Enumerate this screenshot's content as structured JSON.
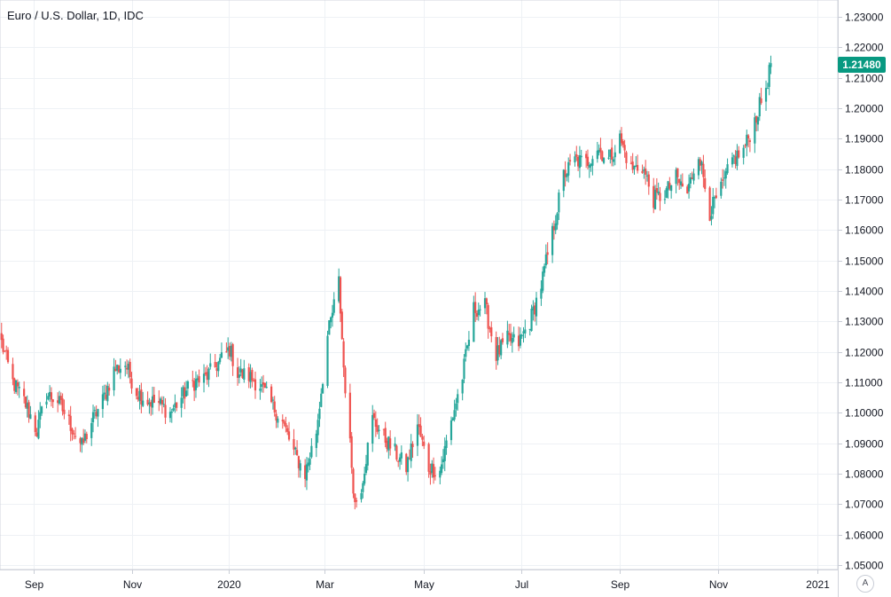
{
  "header": {
    "title": "Euro / U.S. Dollar, 1D, IDC"
  },
  "last_price": {
    "label": "1.21480",
    "color": "#089981"
  },
  "controls": {
    "auto_scale": "A"
  },
  "colors": {
    "up": "#26a69a",
    "down": "#ef5350",
    "grid": "#eef1f5",
    "axis_text": "#131722"
  },
  "chart_data": {
    "type": "candlestick",
    "title": "Euro / U.S. Dollar, 1D, IDC",
    "ylim": [
      1.05,
      1.235
    ],
    "y_ticks": [
      "1.23000",
      "1.22000",
      "1.21000",
      "1.20000",
      "1.19000",
      "1.18000",
      "1.17000",
      "1.16000",
      "1.15000",
      "1.14000",
      "1.13000",
      "1.12000",
      "1.11000",
      "1.10000",
      "1.09000",
      "1.08000",
      "1.07000",
      "1.06000",
      "1.05000"
    ],
    "x_labels": [
      "Sep",
      "Nov",
      "2020",
      "Mar",
      "May",
      "Jul",
      "Sep",
      "Nov",
      "2021"
    ],
    "grid": true,
    "series": [
      {
        "date": "2019-08-12",
        "value": 1.123
      },
      {
        "date": "2019-08-19",
        "value": 1.11
      },
      {
        "date": "2019-08-26",
        "value": 1.104
      },
      {
        "date": "2019-09-03",
        "value": 1.094
      },
      {
        "date": "2019-09-09",
        "value": 1.106
      },
      {
        "date": "2019-09-16",
        "value": 1.104
      },
      {
        "date": "2019-09-23",
        "value": 1.097
      },
      {
        "date": "2019-10-01",
        "value": 1.089
      },
      {
        "date": "2019-10-07",
        "value": 1.097
      },
      {
        "date": "2019-10-14",
        "value": 1.104
      },
      {
        "date": "2019-10-21",
        "value": 1.114
      },
      {
        "date": "2019-10-28",
        "value": 1.116
      },
      {
        "date": "2019-11-04",
        "value": 1.107
      },
      {
        "date": "2019-11-11",
        "value": 1.104
      },
      {
        "date": "2019-11-18",
        "value": 1.103
      },
      {
        "date": "2019-11-25",
        "value": 1.1
      },
      {
        "date": "2019-12-02",
        "value": 1.105
      },
      {
        "date": "2019-12-09",
        "value": 1.11
      },
      {
        "date": "2019-12-16",
        "value": 1.111
      },
      {
        "date": "2019-12-23",
        "value": 1.115
      },
      {
        "date": "2020-01-01",
        "value": 1.121
      },
      {
        "date": "2020-01-06",
        "value": 1.113
      },
      {
        "date": "2020-01-13",
        "value": 1.112
      },
      {
        "date": "2020-01-20",
        "value": 1.109
      },
      {
        "date": "2020-01-27",
        "value": 1.103
      },
      {
        "date": "2020-02-03",
        "value": 1.097
      },
      {
        "date": "2020-02-10",
        "value": 1.087
      },
      {
        "date": "2020-02-17",
        "value": 1.08
      },
      {
        "date": "2020-02-24",
        "value": 1.094
      },
      {
        "date": "2020-03-02",
        "value": 1.125
      },
      {
        "date": "2020-03-09",
        "value": 1.143
      },
      {
        "date": "2020-03-12",
        "value": 1.115
      },
      {
        "date": "2020-03-19",
        "value": 1.07
      },
      {
        "date": "2020-03-23",
        "value": 1.076
      },
      {
        "date": "2020-03-30",
        "value": 1.098
      },
      {
        "date": "2020-04-06",
        "value": 1.092
      },
      {
        "date": "2020-04-13",
        "value": 1.087
      },
      {
        "date": "2020-04-20",
        "value": 1.082
      },
      {
        "date": "2020-04-27",
        "value": 1.096
      },
      {
        "date": "2020-05-04",
        "value": 1.082
      },
      {
        "date": "2020-05-11",
        "value": 1.081
      },
      {
        "date": "2020-05-18",
        "value": 1.097
      },
      {
        "date": "2020-05-25",
        "value": 1.112
      },
      {
        "date": "2020-06-01",
        "value": 1.134
      },
      {
        "date": "2020-06-08",
        "value": 1.135
      },
      {
        "date": "2020-06-15",
        "value": 1.119
      },
      {
        "date": "2020-06-22",
        "value": 1.124
      },
      {
        "date": "2020-06-29",
        "value": 1.123
      },
      {
        "date": "2020-07-06",
        "value": 1.13
      },
      {
        "date": "2020-07-13",
        "value": 1.142
      },
      {
        "date": "2020-07-20",
        "value": 1.159
      },
      {
        "date": "2020-07-27",
        "value": 1.178
      },
      {
        "date": "2020-08-03",
        "value": 1.183
      },
      {
        "date": "2020-08-10",
        "value": 1.182
      },
      {
        "date": "2020-08-17",
        "value": 1.187
      },
      {
        "date": "2020-08-24",
        "value": 1.183
      },
      {
        "date": "2020-08-31",
        "value": 1.19
      },
      {
        "date": "2020-09-07",
        "value": 1.18
      },
      {
        "date": "2020-09-14",
        "value": 1.181
      },
      {
        "date": "2020-09-21",
        "value": 1.17
      },
      {
        "date": "2020-09-28",
        "value": 1.172
      },
      {
        "date": "2020-10-05",
        "value": 1.177
      },
      {
        "date": "2020-10-12",
        "value": 1.172
      },
      {
        "date": "2020-10-19",
        "value": 1.186
      },
      {
        "date": "2020-10-26",
        "value": 1.166
      },
      {
        "date": "2020-11-02",
        "value": 1.173
      },
      {
        "date": "2020-11-09",
        "value": 1.183
      },
      {
        "date": "2020-11-16",
        "value": 1.186
      },
      {
        "date": "2020-11-23",
        "value": 1.196
      },
      {
        "date": "2020-11-30",
        "value": 1.207
      },
      {
        "date": "2020-12-03",
        "value": 1.214
      }
    ]
  }
}
